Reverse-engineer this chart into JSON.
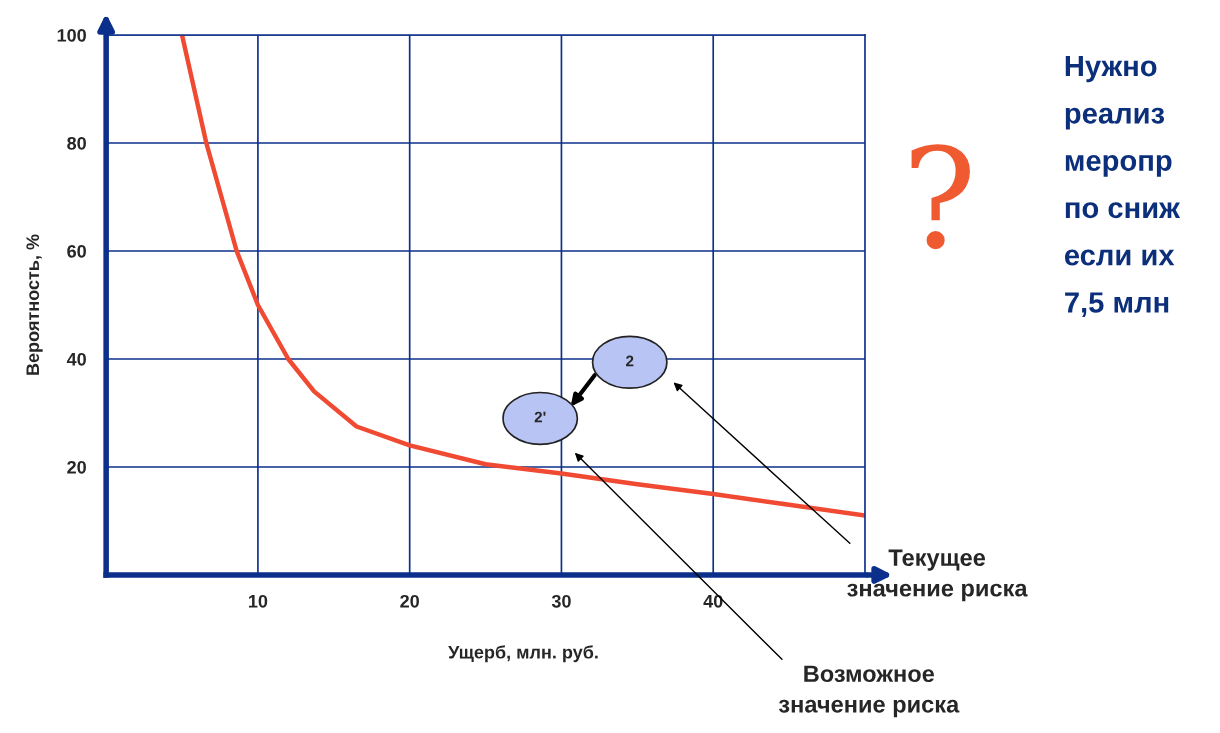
{
  "chart_data": {
    "type": "line",
    "xlabel": "Ущерб, млн. руб.",
    "ylabel": "Вероятность, %",
    "x": [
      5,
      6.6,
      8.6,
      10,
      12,
      13.7,
      16.5,
      20,
      25,
      30,
      35,
      40,
      45,
      50
    ],
    "series": [
      {
        "color": "#f04a32",
        "values": [
          100,
          80,
          60,
          50,
          40,
          34,
          27.5,
          24,
          20.5,
          18.8,
          16.8,
          15,
          13,
          11
        ]
      }
    ],
    "xlim": [
      0,
      50
    ],
    "ylim": [
      0,
      100
    ],
    "xticks": [
      10,
      20,
      30,
      40
    ],
    "yticks": [
      20,
      40,
      60,
      80,
      100
    ],
    "grid": true,
    "marker": "none",
    "line_style": "solid",
    "annotations": [
      "2",
      "2'",
      "Текущее\nзначение риска",
      "Возможное\nзначение риска",
      "?",
      "Нужно\nреализ\nмеропр\nпо сниж\nесли их\n7,5 млн"
    ]
  }
}
